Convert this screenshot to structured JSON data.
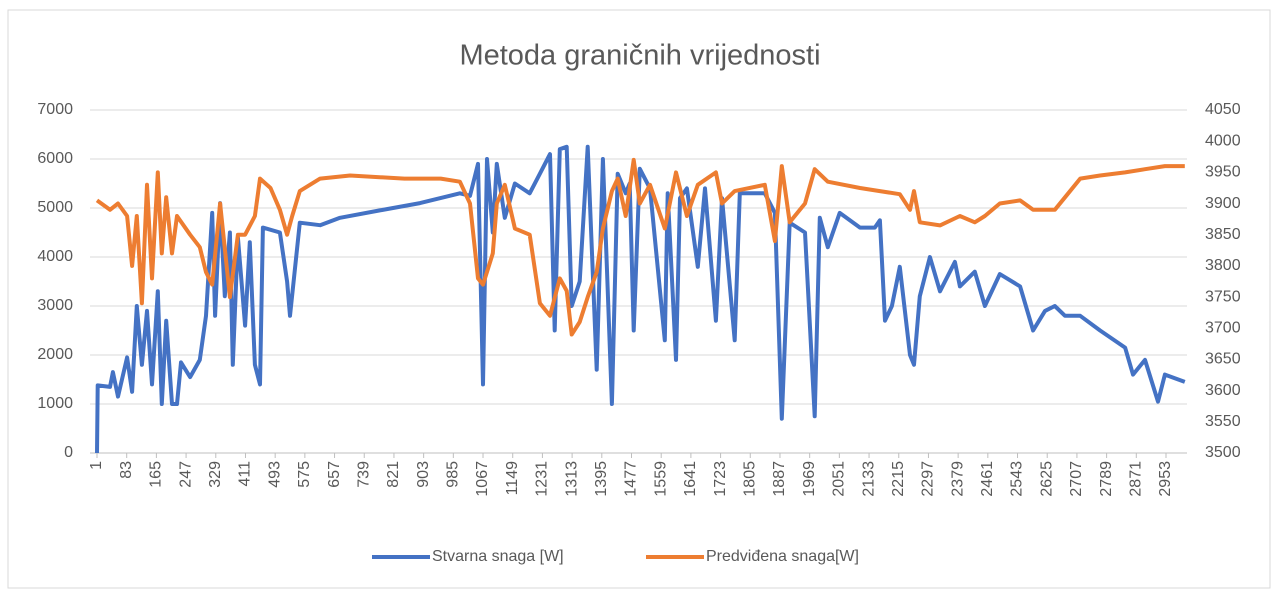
{
  "chart_data": {
    "type": "line",
    "title": "Metoda graničnih vrijednosti",
    "xlim": [
      1,
      3011
    ],
    "xticks": [
      1,
      83,
      165,
      247,
      329,
      411,
      493,
      575,
      657,
      739,
      821,
      903,
      985,
      1067,
      1149,
      1231,
      1313,
      1395,
      1477,
      1559,
      1641,
      1723,
      1805,
      1887,
      1969,
      2051,
      2133,
      2215,
      2297,
      2379,
      2461,
      2543,
      2625,
      2707,
      2789,
      2871,
      2953
    ],
    "ylim": [
      0,
      7000
    ],
    "yticks": [
      0,
      1000,
      2000,
      3000,
      4000,
      5000,
      6000,
      7000
    ],
    "y2lim": [
      3500,
      4050
    ],
    "y2ticks": [
      3500,
      3550,
      3600,
      3650,
      3700,
      3750,
      3800,
      3850,
      3900,
      3950,
      4000,
      4050
    ],
    "grid": true,
    "legend": "bottom",
    "series": [
      {
        "name": "Stvarna snaga [W]",
        "color": "#4472c4",
        "axis": "y",
        "x": [
          1,
          3,
          37,
          45,
          59,
          84,
          98,
          111,
          125,
          139,
          153,
          169,
          180,
          192,
          208,
          222,
          233,
          258,
          285,
          302,
          319,
          327,
          341,
          354,
          368,
          376,
          390,
          410,
          423,
          437,
          451,
          459,
          506,
          526,
          534,
          561,
          617,
          672,
          782,
          893,
          1003,
          1031,
          1053,
          1067,
          1078,
          1094,
          1105,
          1127,
          1155,
          1196,
          1224,
          1252,
          1265,
          1279,
          1298,
          1312,
          1334,
          1356,
          1381,
          1398,
          1423,
          1439,
          1461,
          1472,
          1483,
          1500,
          1528,
          1569,
          1577,
          1600,
          1611,
          1630,
          1660,
          1680,
          1710,
          1727,
          1762,
          1776,
          1845,
          1873,
          1892,
          1914,
          1956,
          1983,
          1997,
          2019,
          2052,
          2108,
          2149,
          2163,
          2177,
          2196,
          2218,
          2246,
          2257,
          2273,
          2301,
          2329,
          2370,
          2384,
          2425,
          2453,
          2494,
          2550,
          2586,
          2619,
          2646,
          2674,
          2716,
          2771,
          2840,
          2862,
          2895,
          2931,
          2950,
          3005
        ],
        "values": [
          0,
          1380,
          1350,
          1650,
          1150,
          1950,
          1250,
          3000,
          1800,
          2900,
          1400,
          3300,
          1000,
          2700,
          1000,
          1000,
          1850,
          1550,
          1900,
          2800,
          4900,
          2800,
          5100,
          3200,
          4500,
          1800,
          4400,
          2600,
          4300,
          1800,
          1400,
          4600,
          4500,
          3500,
          2800,
          4700,
          4650,
          4800,
          4950,
          5100,
          5300,
          5250,
          5900,
          1400,
          6000,
          4500,
          5900,
          4800,
          5500,
          5300,
          5700,
          6100,
          2500,
          6200,
          6250,
          3000,
          3500,
          6250,
          1700,
          6000,
          1000,
          5700,
          5300,
          5500,
          2500,
          5800,
          5400,
          2300,
          5300,
          1900,
          5200,
          5400,
          3800,
          5400,
          2700,
          5200,
          2300,
          5300,
          5300,
          4900,
          700,
          4700,
          4500,
          750,
          4800,
          4200,
          4900,
          4600,
          4600,
          4750,
          2700,
          3000,
          3800,
          2000,
          1800,
          3200,
          4000,
          3300,
          3900,
          3400,
          3700,
          3000,
          3650,
          3400,
          2500,
          2900,
          3000,
          2800,
          2800,
          2500,
          2150,
          1600,
          1900,
          1050,
          1600,
          1450
        ]
      },
      {
        "name": "Predviđena snaga[W]",
        "color": "#ed7d31",
        "axis": "y2",
        "x": [
          1,
          37,
          59,
          84,
          98,
          111,
          125,
          139,
          153,
          169,
          180,
          192,
          208,
          222,
          258,
          285,
          302,
          319,
          341,
          368,
          390,
          410,
          437,
          451,
          480,
          506,
          526,
          540,
          561,
          617,
          700,
          850,
          950,
          1003,
          1031,
          1053,
          1067,
          1094,
          1105,
          1127,
          1155,
          1196,
          1224,
          1252,
          1279,
          1298,
          1312,
          1334,
          1356,
          1381,
          1398,
          1423,
          1439,
          1461,
          1483,
          1500,
          1528,
          1569,
          1600,
          1630,
          1660,
          1710,
          1727,
          1762,
          1845,
          1873,
          1892,
          1914,
          1956,
          1983,
          2019,
          2108,
          2163,
          2218,
          2246,
          2257,
          2273,
          2329,
          2384,
          2425,
          2453,
          2494,
          2550,
          2586,
          2646,
          2674,
          2716,
          2771,
          2840,
          2895,
          2950,
          3005
        ],
        "values": [
          3905,
          3890,
          3900,
          3880,
          3800,
          3880,
          3740,
          3930,
          3780,
          3950,
          3820,
          3910,
          3820,
          3880,
          3850,
          3830,
          3790,
          3770,
          3900,
          3750,
          3850,
          3850,
          3880,
          3940,
          3925,
          3890,
          3850,
          3880,
          3920,
          3940,
          3945,
          3940,
          3940,
          3935,
          3900,
          3780,
          3770,
          3820,
          3900,
          3930,
          3860,
          3850,
          3740,
          3720,
          3780,
          3760,
          3690,
          3710,
          3750,
          3790,
          3860,
          3920,
          3940,
          3880,
          3970,
          3900,
          3930,
          3860,
          3950,
          3880,
          3930,
          3950,
          3900,
          3920,
          3930,
          3840,
          3960,
          3870,
          3900,
          3955,
          3935,
          3925,
          3920,
          3915,
          3890,
          3920,
          3870,
          3865,
          3880,
          3870,
          3880,
          3900,
          3905,
          3890,
          3890,
          3910,
          3940,
          3945,
          3950,
          3955,
          3960,
          3960
        ]
      }
    ]
  }
}
